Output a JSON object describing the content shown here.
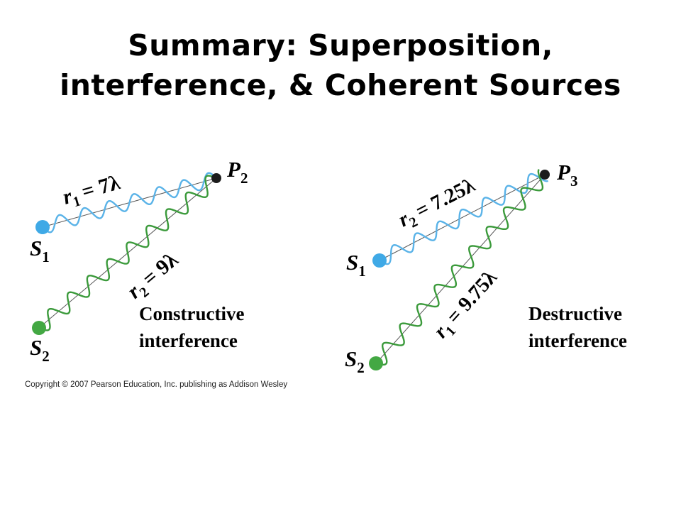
{
  "title": {
    "line1": "Summary: Superposition,",
    "line2": "interference, & Coherent Sources"
  },
  "colors": {
    "source1": "#3fa9e6",
    "source2": "#43a843",
    "wave1": "#5ab3e8",
    "wave2": "#3b9a3b",
    "point": "#1c1c1c",
    "line": "#555555"
  },
  "left_panel": {
    "source1_label": "S",
    "source1_sub": "1",
    "source2_label": "S",
    "source2_sub": "2",
    "point_label": "P",
    "point_sub": "2",
    "path1": {
      "symbol": "r",
      "sub": "1",
      "expr": "= 7λ"
    },
    "path2": {
      "symbol": "r",
      "sub": "2",
      "expr": "= 9λ"
    },
    "caption_line1": "Constructive",
    "caption_line2": "interference"
  },
  "right_panel": {
    "source1_label": "S",
    "source1_sub": "1",
    "source2_label": "S",
    "source2_sub": "2",
    "point_label": "P",
    "point_sub": "3",
    "path1": {
      "symbol": "r",
      "sub": "2",
      "expr": "= 7.25λ"
    },
    "path2": {
      "symbol": "r",
      "sub": "1",
      "expr": "= 9.75λ"
    },
    "caption_line1": "Destructive",
    "caption_line2": "interference"
  },
  "copyright": "Copyright © 2007 Pearson Education, Inc. publishing as Addison Wesley"
}
